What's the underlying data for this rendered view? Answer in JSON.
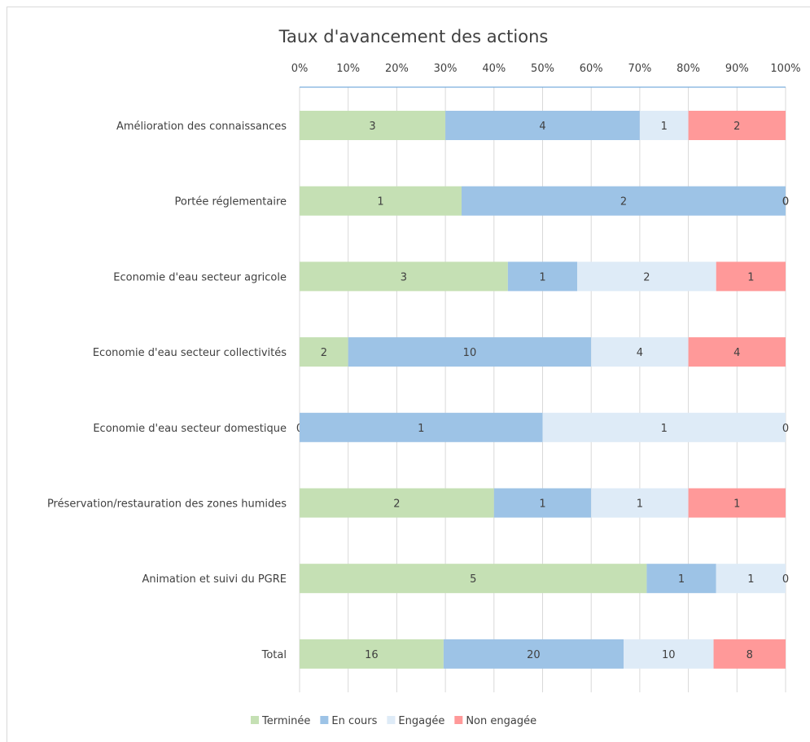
{
  "chart_data": {
    "type": "bar",
    "orientation": "horizontal",
    "stacked": "100%",
    "title": "Taux d'avancement des actions",
    "xlabel": "",
    "ylabel": "",
    "axis_position": "top",
    "xlim": [
      0,
      100
    ],
    "x_ticks": [
      "0%",
      "10%",
      "20%",
      "30%",
      "40%",
      "50%",
      "60%",
      "70%",
      "80%",
      "90%",
      "100%"
    ],
    "grid": true,
    "legend_position": "bottom",
    "categories": [
      "Amélioration des connaissances",
      "Portée réglementaire",
      "Economie d'eau secteur agricole",
      "Economie d'eau secteur collectivités",
      "Economie d'eau secteur domestique",
      "Préservation/restauration des zones humides",
      "Animation et suivi du PGRE",
      "Total"
    ],
    "series": [
      {
        "name": "Terminée",
        "color": "#c5e0b4",
        "values": [
          3,
          1,
          3,
          2,
          0,
          2,
          5,
          16
        ]
      },
      {
        "name": "En cours",
        "color": "#9dc3e6",
        "values": [
          4,
          2,
          1,
          10,
          1,
          1,
          1,
          20
        ]
      },
      {
        "name": "Engagée",
        "color": "#deebf7",
        "values": [
          1,
          0,
          2,
          4,
          1,
          1,
          1,
          10
        ]
      },
      {
        "name": "Non engagée",
        "color": "#ff9999",
        "values": [
          2,
          0,
          1,
          4,
          0,
          1,
          0,
          8
        ]
      }
    ]
  }
}
